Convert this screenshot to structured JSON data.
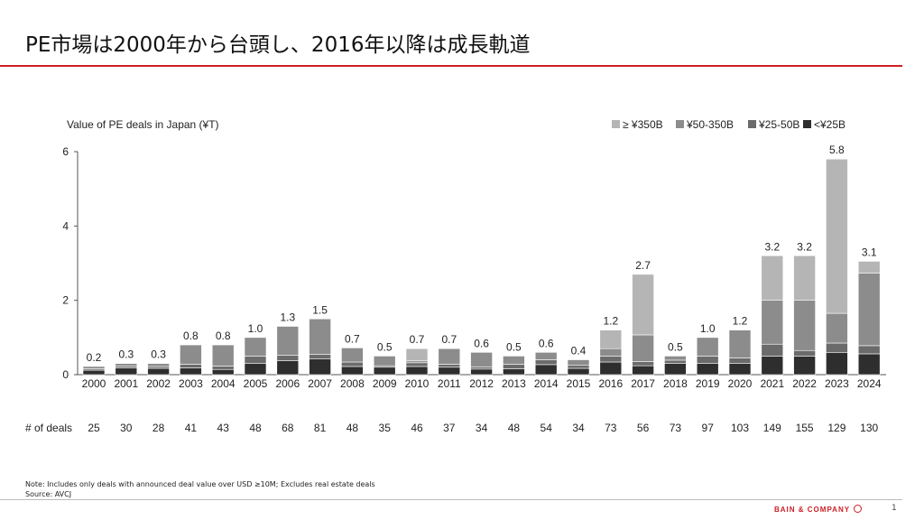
{
  "slide": {
    "title": "PE市場は2000年から台頭し、2016年以降は成長軌道",
    "footnote_1": "Note: Includes only deals with announced deal value over USD ≥10M; Excludes real estate deals",
    "footnote_2": "Source: AVCJ",
    "brand": "BAIN & COMPANY",
    "page_number": "1"
  },
  "chart_data": {
    "type": "bar",
    "stacked": true,
    "ylabel": "Value of PE deals in Japan (¥T)",
    "ylim": [
      0,
      6
    ],
    "yticks": [
      "0",
      "2",
      "4",
      "6"
    ],
    "grid": false,
    "legend_position": "top-right",
    "categories": [
      "2000",
      "2001",
      "2002",
      "2003",
      "2004",
      "2005",
      "2006",
      "2007",
      "2008",
      "2009",
      "2010",
      "2011",
      "2012",
      "2013",
      "2014",
      "2015",
      "2016",
      "2017",
      "2018",
      "2019",
      "2020",
      "2021",
      "2022",
      "2023",
      "2024"
    ],
    "totals": [
      "0.2",
      "0.3",
      "0.3",
      "0.8",
      "0.8",
      "1.0",
      "1.3",
      "1.5",
      "0.7",
      "0.5",
      "0.7",
      "0.7",
      "0.6",
      "0.5",
      "0.6",
      "0.4",
      "1.2",
      "2.7",
      "0.5",
      "1.0",
      "1.2",
      "3.2",
      "3.2",
      "5.8",
      "3.1"
    ],
    "series": [
      {
        "name": "<¥25B",
        "color": "#2e2e2e",
        "values": [
          0.12,
          0.18,
          0.17,
          0.18,
          0.14,
          0.3,
          0.38,
          0.42,
          0.22,
          0.2,
          0.22,
          0.2,
          0.15,
          0.16,
          0.27,
          0.17,
          0.34,
          0.24,
          0.3,
          0.3,
          0.3,
          0.5,
          0.5,
          0.6,
          0.56
        ]
      },
      {
        "name": "¥25-50B",
        "color": "#6b6b6b",
        "values": [
          0.04,
          0.05,
          0.05,
          0.1,
          0.09,
          0.2,
          0.14,
          0.13,
          0.12,
          0.04,
          0.1,
          0.08,
          0.06,
          0.12,
          0.13,
          0.08,
          0.16,
          0.11,
          0.09,
          0.2,
          0.15,
          0.32,
          0.15,
          0.25,
          0.22
        ]
      },
      {
        "name": "¥50-350B",
        "color": "#8c8c8c",
        "values": [
          0.06,
          0.07,
          0.08,
          0.52,
          0.57,
          0.5,
          0.78,
          0.95,
          0.38,
          0.26,
          0.05,
          0.42,
          0.39,
          0.22,
          0.2,
          0.15,
          0.2,
          0.72,
          0.11,
          0.5,
          0.75,
          1.18,
          1.35,
          0.8,
          1.95
        ]
      },
      {
        "name": "≥ ¥350B",
        "color": "#b5b5b5",
        "values": [
          0,
          0,
          0,
          0,
          0,
          0,
          0,
          0,
          0,
          0,
          0.33,
          0,
          0,
          0,
          0,
          0,
          0.5,
          1.63,
          0,
          0,
          0,
          1.2,
          1.2,
          4.15,
          0.32
        ]
      }
    ],
    "legend_order": [
      "≥ ¥350B",
      "¥50-350B",
      "¥25-50B",
      "<¥25B"
    ],
    "deals_label": "# of deals",
    "deals": [
      "25",
      "30",
      "28",
      "41",
      "43",
      "48",
      "68",
      "81",
      "48",
      "35",
      "46",
      "37",
      "34",
      "48",
      "54",
      "34",
      "73",
      "56",
      "73",
      "97",
      "103",
      "149",
      "155",
      "129",
      "130"
    ]
  }
}
